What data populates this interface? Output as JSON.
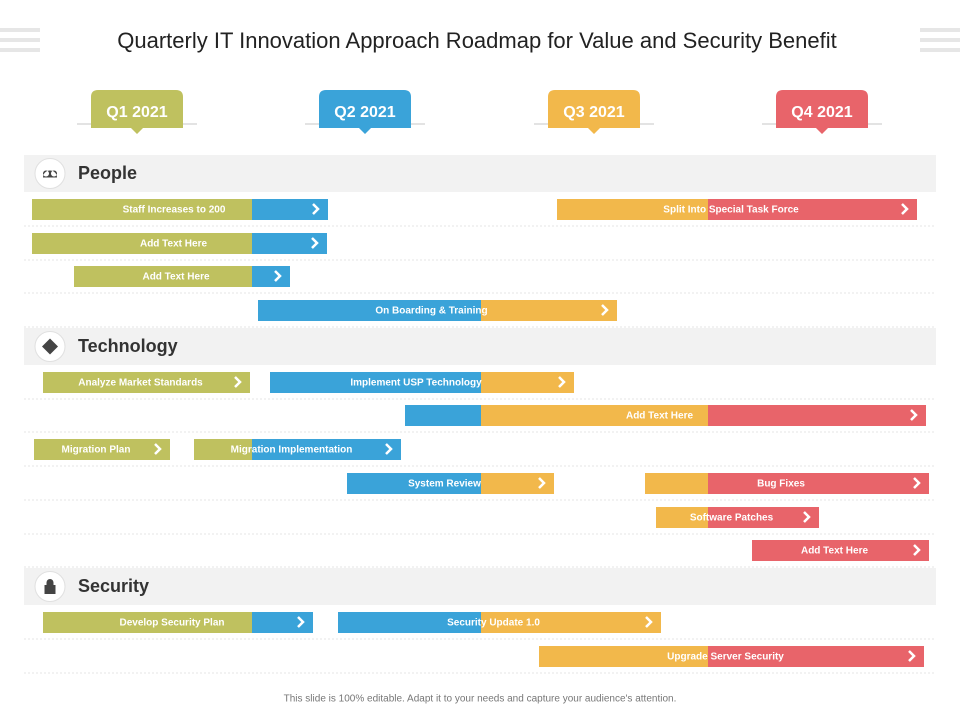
{
  "title": "Quarterly IT Innovation Approach Roadmap for Value and Security Benefit",
  "quarters": [
    "Q1 2021",
    "Q2 2021",
    "Q3 2021",
    "Q4 2021"
  ],
  "sections": [
    {
      "name": "People",
      "rows": [
        [
          {
            "label": "Staff Increases to 200"
          },
          {
            "label": "Split Into Special Task Force"
          }
        ],
        [
          {
            "label": "Add Text Here"
          }
        ],
        [
          {
            "label": "Add Text Here"
          }
        ],
        [
          {
            "label": "On Boarding & Training"
          }
        ]
      ]
    },
    {
      "name": "Technology",
      "rows": [
        [
          {
            "label": "Analyze Market Standards"
          },
          {
            "label": "Implement USP Technology"
          }
        ],
        [
          {
            "label": "Add Text Here"
          }
        ],
        [
          {
            "label": "Migration Plan"
          },
          {
            "label": "Migration Implementation"
          }
        ],
        [
          {
            "label": "System Review"
          },
          {
            "label": "Bug Fixes"
          }
        ],
        [
          {
            "label": "Software Patches"
          }
        ],
        [
          {
            "label": "Add Text Here"
          }
        ]
      ]
    },
    {
      "name": "Security",
      "rows": [
        [
          {
            "label": "Develop Security Plan"
          },
          {
            "label": "Security Update 1.0"
          }
        ],
        [
          {
            "label": "Upgrade Server Security"
          }
        ]
      ]
    }
  ],
  "footer": "This slide is 100% editable. Adapt it to your needs and capture your audience's attention."
}
